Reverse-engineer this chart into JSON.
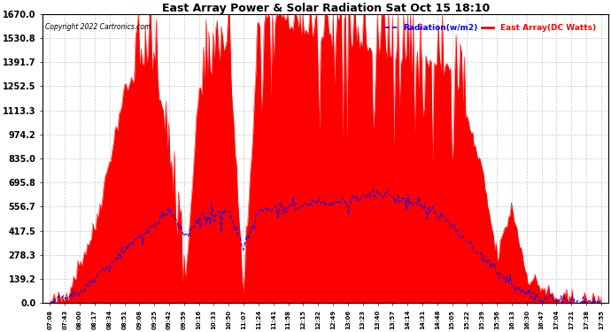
{
  "title": "East Array Power & Solar Radiation Sat Oct 15 18:10",
  "copyright": "Copyright 2022 Cartronics.com",
  "legend_radiation": "Radiation(w/m2)",
  "legend_east": "East Array(DC Watts)",
  "yticks": [
    0.0,
    139.2,
    278.3,
    417.5,
    556.7,
    695.8,
    835.0,
    974.2,
    1113.3,
    1252.5,
    1391.7,
    1530.8,
    1670.0
  ],
  "ylim": [
    0,
    1670.0
  ],
  "bg_color": "#ffffff",
  "plot_bg_color": "#ffffff",
  "grid_color": "#c8c8c8",
  "red_color": "#ff0000",
  "blue_color": "#0000ff",
  "x_labels": [
    "07:08",
    "07:43",
    "08:00",
    "08:17",
    "08:34",
    "08:51",
    "09:08",
    "09:25",
    "09:42",
    "09:59",
    "10:16",
    "10:33",
    "10:50",
    "11:07",
    "11:24",
    "11:41",
    "11:58",
    "12:15",
    "12:32",
    "12:49",
    "13:06",
    "13:23",
    "13:40",
    "13:57",
    "14:14",
    "14:31",
    "14:48",
    "15:05",
    "15:22",
    "15:39",
    "15:56",
    "16:13",
    "16:30",
    "16:47",
    "17:04",
    "17:21",
    "17:38",
    "17:55"
  ]
}
